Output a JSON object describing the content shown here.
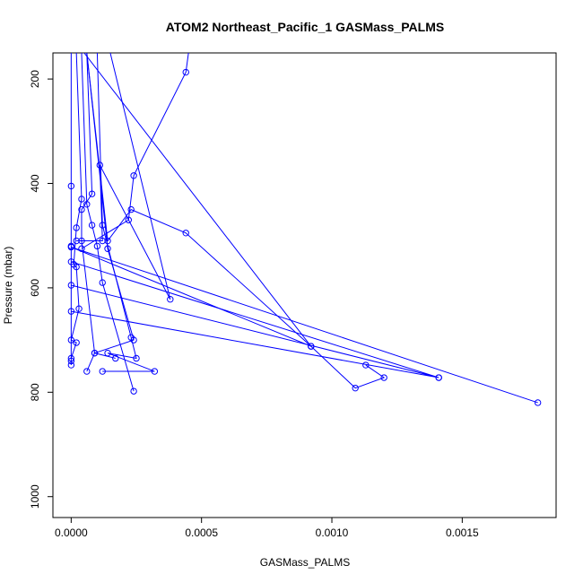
{
  "chart_data": {
    "type": "scatter",
    "title": "ATOM2 Northeast_Pacific_1 GASMass_PALMS",
    "xlabel": "GASMass_PALMS",
    "ylabel": "Pressure (mbar)",
    "xlim": [
      -7e-05,
      0.00186
    ],
    "ylim": [
      1040,
      150
    ],
    "y_reversed": true,
    "xticks": [
      0,
      0.0005,
      0.001,
      0.0015
    ],
    "xtick_labels": [
      "0.0000",
      "0.0005",
      "0.0010",
      "0.0015"
    ],
    "yticks": [
      200,
      400,
      600,
      800,
      1000
    ],
    "ytick_labels": [
      "200",
      "400",
      "600",
      "800",
      "1000"
    ],
    "grid": false,
    "series_color": "#0000ff",
    "series": [
      {
        "x": [
          0.0,
          0.0,
          0.0,
          0.0,
          0.0
        ],
        "y": [
          150,
          405,
          520,
          740,
          748
        ]
      },
      {
        "x": [
          2e-05,
          4e-05,
          2e-05,
          1e-05,
          2e-05,
          3e-05,
          0.0,
          2e-05,
          0.0
        ],
        "y": [
          150,
          430,
          485,
          555,
          560,
          640,
          700,
          705,
          735
        ]
      },
      {
        "x": [
          6e-05,
          8e-05,
          4e-05,
          4e-05,
          9e-05,
          6e-05
        ],
        "y": [
          150,
          420,
          450,
          510,
          725,
          760
        ]
      },
      {
        "x": [
          4e-05,
          6e-05,
          8e-05,
          0.0001,
          0.00012,
          0.00024
        ],
        "y": [
          150,
          440,
          480,
          520,
          590,
          798
        ]
      },
      {
        "x": [
          6e-05,
          0.00014,
          0.00024,
          9e-05,
          0.00017
        ],
        "y": [
          150,
          525,
          700,
          725,
          735
        ]
      },
      {
        "x": [
          0.0001,
          0.00012,
          0.00023,
          0.00025,
          0.00014,
          0.00032,
          0.00012
        ],
        "y": [
          150,
          480,
          695,
          735,
          725,
          760,
          760
        ]
      },
      {
        "x": [
          0.00015,
          0.00038,
          0.00011,
          0.00012,
          2e-05
        ],
        "y": [
          150,
          622,
          365,
          510,
          510
        ]
      },
      {
        "x": [
          0.00045,
          0.00044,
          0.00024,
          0.00022,
          4e-05
        ],
        "y": [
          150,
          187,
          385,
          470,
          525
        ]
      },
      {
        "x": [
          6e-05,
          0.00014,
          0.00023,
          0.00044,
          0.00092,
          0.00109,
          0.0012,
          0.00113
        ],
        "y": [
          150,
          510,
          450,
          495,
          712,
          792,
          772,
          748
        ]
      },
      {
        "x": [
          5e-05,
          0.00092,
          0.0,
          0.00179
        ],
        "y": [
          150,
          712,
          522,
          820
        ]
      },
      {
        "x": [
          0.0,
          0.00141,
          0.0,
          0.00141,
          0.0
        ],
        "y": [
          550,
          772,
          595,
          772,
          645
        ]
      }
    ]
  }
}
